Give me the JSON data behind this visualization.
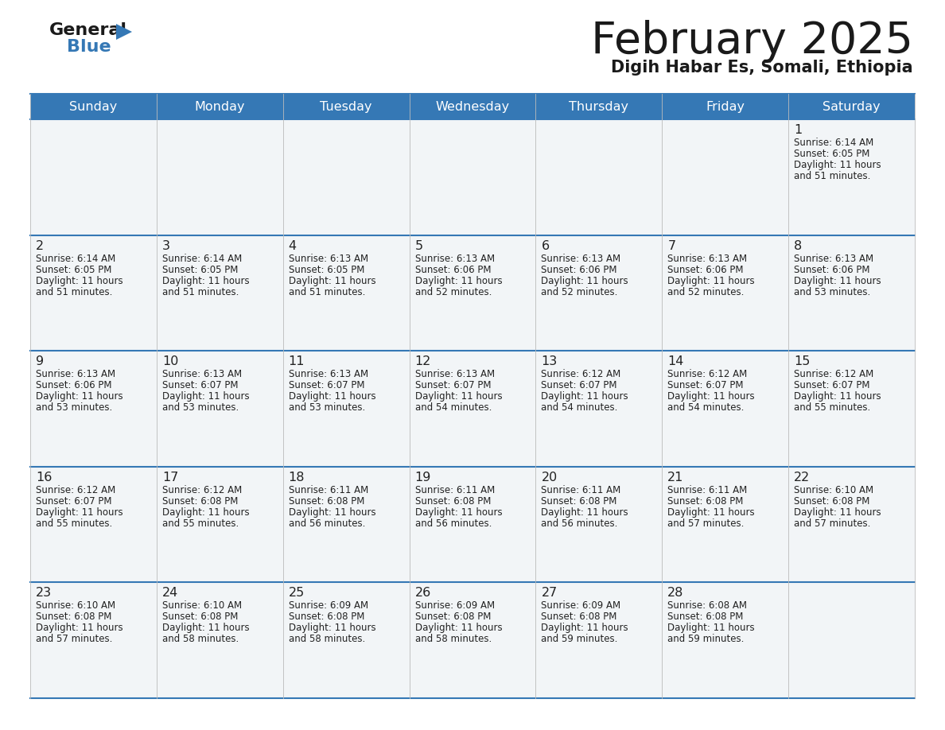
{
  "title": "February 2025",
  "subtitle": "Digih Habar Es, Somali, Ethiopia",
  "header_color": "#3578b5",
  "header_text_color": "#ffffff",
  "cell_bg_color": "#ffffff",
  "alt_cell_bg_color": "#f0f4f8",
  "border_color": "#3578b5",
  "text_color": "#222222",
  "days_of_week": [
    "Sunday",
    "Monday",
    "Tuesday",
    "Wednesday",
    "Thursday",
    "Friday",
    "Saturday"
  ],
  "calendar_data": [
    [
      null,
      null,
      null,
      null,
      null,
      null,
      {
        "day": 1,
        "sunrise": "6:14 AM",
        "sunset": "6:05 PM",
        "daylight_line1": "Daylight: 11 hours",
        "daylight_line2": "and 51 minutes."
      }
    ],
    [
      {
        "day": 2,
        "sunrise": "6:14 AM",
        "sunset": "6:05 PM",
        "daylight_line1": "Daylight: 11 hours",
        "daylight_line2": "and 51 minutes."
      },
      {
        "day": 3,
        "sunrise": "6:14 AM",
        "sunset": "6:05 PM",
        "daylight_line1": "Daylight: 11 hours",
        "daylight_line2": "and 51 minutes."
      },
      {
        "day": 4,
        "sunrise": "6:13 AM",
        "sunset": "6:05 PM",
        "daylight_line1": "Daylight: 11 hours",
        "daylight_line2": "and 51 minutes."
      },
      {
        "day": 5,
        "sunrise": "6:13 AM",
        "sunset": "6:06 PM",
        "daylight_line1": "Daylight: 11 hours",
        "daylight_line2": "and 52 minutes."
      },
      {
        "day": 6,
        "sunrise": "6:13 AM",
        "sunset": "6:06 PM",
        "daylight_line1": "Daylight: 11 hours",
        "daylight_line2": "and 52 minutes."
      },
      {
        "day": 7,
        "sunrise": "6:13 AM",
        "sunset": "6:06 PM",
        "daylight_line1": "Daylight: 11 hours",
        "daylight_line2": "and 52 minutes."
      },
      {
        "day": 8,
        "sunrise": "6:13 AM",
        "sunset": "6:06 PM",
        "daylight_line1": "Daylight: 11 hours",
        "daylight_line2": "and 53 minutes."
      }
    ],
    [
      {
        "day": 9,
        "sunrise": "6:13 AM",
        "sunset": "6:06 PM",
        "daylight_line1": "Daylight: 11 hours",
        "daylight_line2": "and 53 minutes."
      },
      {
        "day": 10,
        "sunrise": "6:13 AM",
        "sunset": "6:07 PM",
        "daylight_line1": "Daylight: 11 hours",
        "daylight_line2": "and 53 minutes."
      },
      {
        "day": 11,
        "sunrise": "6:13 AM",
        "sunset": "6:07 PM",
        "daylight_line1": "Daylight: 11 hours",
        "daylight_line2": "and 53 minutes."
      },
      {
        "day": 12,
        "sunrise": "6:13 AM",
        "sunset": "6:07 PM",
        "daylight_line1": "Daylight: 11 hours",
        "daylight_line2": "and 54 minutes."
      },
      {
        "day": 13,
        "sunrise": "6:12 AM",
        "sunset": "6:07 PM",
        "daylight_line1": "Daylight: 11 hours",
        "daylight_line2": "and 54 minutes."
      },
      {
        "day": 14,
        "sunrise": "6:12 AM",
        "sunset": "6:07 PM",
        "daylight_line1": "Daylight: 11 hours",
        "daylight_line2": "and 54 minutes."
      },
      {
        "day": 15,
        "sunrise": "6:12 AM",
        "sunset": "6:07 PM",
        "daylight_line1": "Daylight: 11 hours",
        "daylight_line2": "and 55 minutes."
      }
    ],
    [
      {
        "day": 16,
        "sunrise": "6:12 AM",
        "sunset": "6:07 PM",
        "daylight_line1": "Daylight: 11 hours",
        "daylight_line2": "and 55 minutes."
      },
      {
        "day": 17,
        "sunrise": "6:12 AM",
        "sunset": "6:08 PM",
        "daylight_line1": "Daylight: 11 hours",
        "daylight_line2": "and 55 minutes."
      },
      {
        "day": 18,
        "sunrise": "6:11 AM",
        "sunset": "6:08 PM",
        "daylight_line1": "Daylight: 11 hours",
        "daylight_line2": "and 56 minutes."
      },
      {
        "day": 19,
        "sunrise": "6:11 AM",
        "sunset": "6:08 PM",
        "daylight_line1": "Daylight: 11 hours",
        "daylight_line2": "and 56 minutes."
      },
      {
        "day": 20,
        "sunrise": "6:11 AM",
        "sunset": "6:08 PM",
        "daylight_line1": "Daylight: 11 hours",
        "daylight_line2": "and 56 minutes."
      },
      {
        "day": 21,
        "sunrise": "6:11 AM",
        "sunset": "6:08 PM",
        "daylight_line1": "Daylight: 11 hours",
        "daylight_line2": "and 57 minutes."
      },
      {
        "day": 22,
        "sunrise": "6:10 AM",
        "sunset": "6:08 PM",
        "daylight_line1": "Daylight: 11 hours",
        "daylight_line2": "and 57 minutes."
      }
    ],
    [
      {
        "day": 23,
        "sunrise": "6:10 AM",
        "sunset": "6:08 PM",
        "daylight_line1": "Daylight: 11 hours",
        "daylight_line2": "and 57 minutes."
      },
      {
        "day": 24,
        "sunrise": "6:10 AM",
        "sunset": "6:08 PM",
        "daylight_line1": "Daylight: 11 hours",
        "daylight_line2": "and 58 minutes."
      },
      {
        "day": 25,
        "sunrise": "6:09 AM",
        "sunset": "6:08 PM",
        "daylight_line1": "Daylight: 11 hours",
        "daylight_line2": "and 58 minutes."
      },
      {
        "day": 26,
        "sunrise": "6:09 AM",
        "sunset": "6:08 PM",
        "daylight_line1": "Daylight: 11 hours",
        "daylight_line2": "and 58 minutes."
      },
      {
        "day": 27,
        "sunrise": "6:09 AM",
        "sunset": "6:08 PM",
        "daylight_line1": "Daylight: 11 hours",
        "daylight_line2": "and 59 minutes."
      },
      {
        "day": 28,
        "sunrise": "6:08 AM",
        "sunset": "6:08 PM",
        "daylight_line1": "Daylight: 11 hours",
        "daylight_line2": "and 59 minutes."
      },
      null
    ]
  ]
}
